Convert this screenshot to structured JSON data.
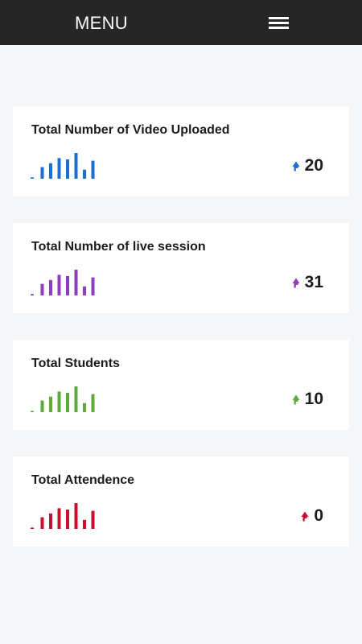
{
  "header": {
    "title": "MENU",
    "menu_icon": "hamburger-icon"
  },
  "cards": [
    {
      "title": "Total Number of Video Uploaded",
      "value": "20",
      "color": "#1b6fd1",
      "icon": "trend-up-arrow-icon",
      "bars": [
        0.05,
        0.45,
        0.6,
        0.8,
        0.75,
        1.0,
        0.35,
        0.7
      ]
    },
    {
      "title": "Total Number of live session",
      "value": "31",
      "color": "#8e3dbf",
      "icon": "trend-up-arrow-icon",
      "bars": [
        0.05,
        0.45,
        0.6,
        0.8,
        0.75,
        1.0,
        0.35,
        0.7
      ]
    },
    {
      "title": "Total Students",
      "value": "10",
      "color": "#5dab3a",
      "icon": "trend-up-arrow-icon",
      "bars": [
        0.05,
        0.45,
        0.6,
        0.8,
        0.75,
        1.0,
        0.35,
        0.7
      ]
    },
    {
      "title": "Total Attendence",
      "value": "0",
      "color": "#c8102e",
      "icon": "trend-up-arrow-icon",
      "bars": [
        0.05,
        0.45,
        0.6,
        0.8,
        0.75,
        1.0,
        0.35,
        0.7
      ]
    }
  ]
}
